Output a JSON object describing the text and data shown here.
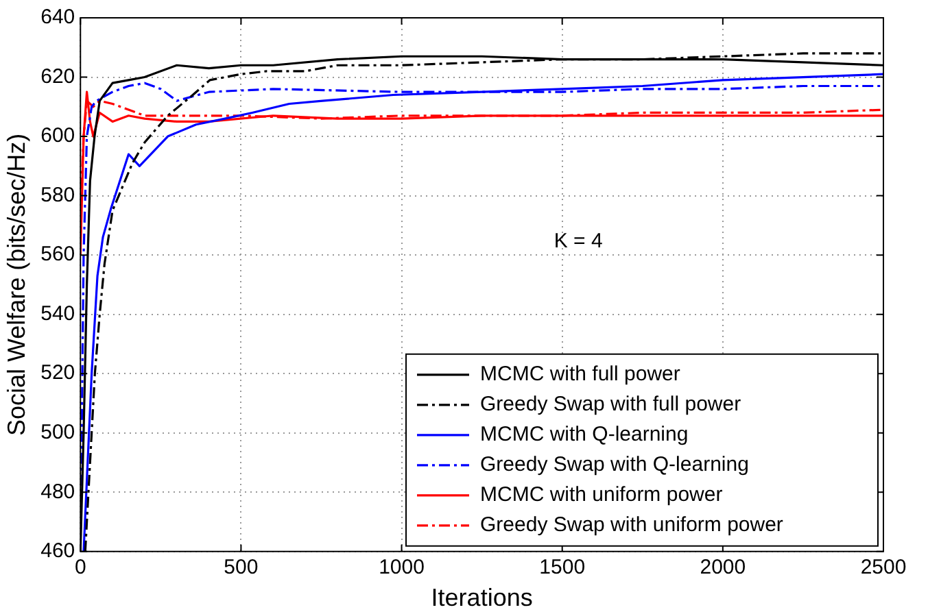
{
  "chart_data": {
    "type": "line",
    "xlabel": "Iterations",
    "ylabel": "Social Welfare (bits/sec/Hz)",
    "annotations": [
      "K = 4"
    ],
    "xlim": [
      0,
      2500
    ],
    "ylim": [
      460,
      640
    ],
    "xticks": [
      0,
      500,
      1000,
      1500,
      2000,
      2500
    ],
    "yticks": [
      460,
      480,
      500,
      520,
      540,
      560,
      580,
      600,
      620,
      640
    ],
    "grid": true,
    "legend": "bottom right",
    "marker": "none",
    "series": [
      {
        "name": "MCMC with full power",
        "color": "#000000",
        "line_style": "solid",
        "x": [
          0,
          10,
          20,
          30,
          44,
          60,
          100,
          150,
          200,
          300,
          400,
          500,
          600,
          800,
          1000,
          1250,
          1500,
          1750,
          2000,
          2250,
          2500
        ],
        "values": [
          460,
          500,
          550,
          585,
          600,
          612,
          618,
          619,
          620,
          624,
          623,
          624,
          624,
          626,
          627,
          627,
          626,
          626,
          626,
          625,
          624
        ]
      },
      {
        "name": "Greedy Swap with full power",
        "color": "#000000",
        "line_style": "dashed",
        "x": [
          15,
          30,
          45,
          60,
          75,
          100,
          162,
          200,
          272,
          350,
          403,
          500,
          580,
          700,
          800,
          1000,
          1250,
          1500,
          1750,
          2000,
          2250,
          2500
        ],
        "values": [
          460,
          490,
          520,
          540,
          557,
          575,
          591,
          598,
          607,
          614,
          619,
          621,
          622,
          622,
          624,
          624,
          625,
          626,
          626,
          627,
          628,
          628
        ]
      },
      {
        "name": "MCMC with Q-learning",
        "color": "#0000ff",
        "line_style": "solid",
        "x": [
          10,
          20,
          35,
          53,
          70,
          96,
          150,
          184,
          272,
          360,
          450,
          535,
          650,
          754,
          974,
          1250,
          1500,
          1750,
          2000,
          2250,
          2500
        ],
        "values": [
          460,
          484,
          520,
          553,
          566,
          576,
          594,
          590,
          600,
          604,
          606,
          608,
          611,
          612,
          614,
          615,
          616,
          617,
          619,
          620,
          621
        ]
      },
      {
        "name": "Greedy Swap with Q-learning",
        "color": "#0000ff",
        "line_style": "dashed",
        "x": [
          0,
          10,
          20,
          35,
          50,
          100,
          150,
          200,
          250,
          300,
          400,
          600,
          1000,
          1250,
          1500,
          1750,
          2000,
          2250,
          2500
        ],
        "values": [
          460,
          560,
          600,
          610,
          612,
          615,
          617,
          618,
          616,
          612,
          615,
          616,
          615,
          615,
          615,
          616,
          616,
          617,
          617
        ]
      },
      {
        "name": "MCMC with uniform power",
        "color": "#ff0000",
        "line_style": "solid",
        "x": [
          0,
          10,
          20,
          30,
          40,
          60,
          100,
          150,
          200,
          300,
          400,
          600,
          800,
          1000,
          1250,
          1500,
          1750,
          2000,
          2250,
          2500
        ],
        "values": [
          560,
          600,
          615,
          605,
          600,
          608,
          605,
          607,
          606,
          605,
          605,
          607,
          606,
          606,
          607,
          607,
          607,
          607,
          607,
          607
        ]
      },
      {
        "name": "Greedy Swap with uniform power",
        "color": "#ff0000",
        "line_style": "dashed",
        "x": [
          0,
          10,
          20,
          40,
          60,
          100,
          200,
          300,
          500,
          750,
          1000,
          1250,
          1500,
          1750,
          2000,
          2250,
          2500
        ],
        "values": [
          575,
          600,
          612,
          610,
          612,
          611,
          607,
          607,
          607,
          606,
          607,
          607,
          607,
          608,
          608,
          608,
          609
        ]
      }
    ]
  }
}
